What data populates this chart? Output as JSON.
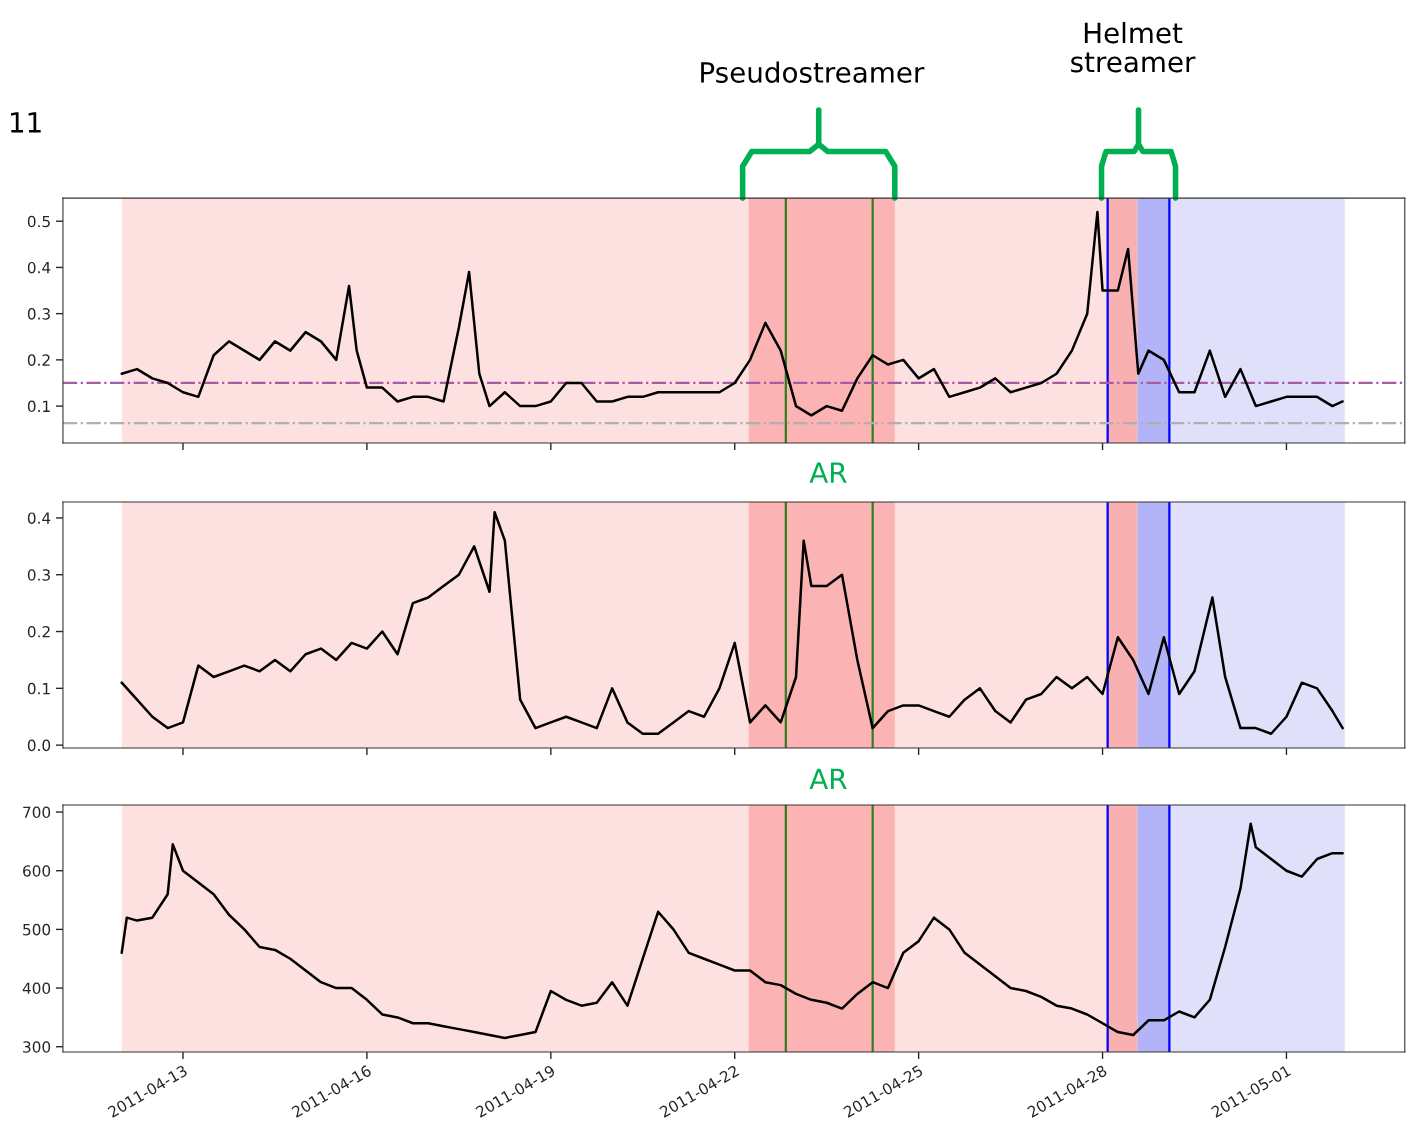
{
  "chart_data": [
    {
      "type": "line",
      "xlim": [
        "2011-04-11T01:00",
        "2011-05-02T22:20"
      ],
      "ylim": [
        0.02,
        0.55
      ],
      "yticks": [
        0.1,
        0.2,
        0.3,
        0.4,
        0.5
      ],
      "xticks": [
        "2011-04-13",
        "2011-04-16",
        "2011-04-19",
        "2011-04-22",
        "2011-04-25",
        "2011-04-28",
        "2011-05-01"
      ],
      "tick_labels": "y",
      "grid": false,
      "legend": false,
      "line_style": "solid",
      "marker": "none",
      "annotations": [
        "11",
        "Pseudostreamer",
        "Helmet\nstreamer"
      ],
      "series": [
        {
          "color": "#000000",
          "x": [
            "2011-04-12T00:00",
            "2011-04-12T06:00",
            "2011-04-12T12:00",
            "2011-04-12T18:00",
            "2011-04-13T00:00",
            "2011-04-13T06:00",
            "2011-04-13T12:00",
            "2011-04-13T18:00",
            "2011-04-14T00:00",
            "2011-04-14T06:00",
            "2011-04-14T12:00",
            "2011-04-14T18:00",
            "2011-04-15T00:00",
            "2011-04-15T06:00",
            "2011-04-15T12:00",
            "2011-04-15T17:00",
            "2011-04-15T20:00",
            "2011-04-16T00:00",
            "2011-04-16T06:00",
            "2011-04-16T12:00",
            "2011-04-16T18:00",
            "2011-04-17T00:00",
            "2011-04-17T06:00",
            "2011-04-17T12:00",
            "2011-04-17T16:00",
            "2011-04-17T20:00",
            "2011-04-18T00:00",
            "2011-04-18T06:00",
            "2011-04-18T12:00",
            "2011-04-18T18:00",
            "2011-04-19T00:00",
            "2011-04-19T06:00",
            "2011-04-19T12:00",
            "2011-04-19T18:00",
            "2011-04-20T00:00",
            "2011-04-20T06:00",
            "2011-04-20T12:00",
            "2011-04-20T18:00",
            "2011-04-21T00:00",
            "2011-04-21T06:00",
            "2011-04-21T12:00",
            "2011-04-21T18:00",
            "2011-04-22T00:00",
            "2011-04-22T06:00",
            "2011-04-22T12:00",
            "2011-04-22T18:00",
            "2011-04-23T00:00",
            "2011-04-23T06:00",
            "2011-04-23T12:00",
            "2011-04-23T18:00",
            "2011-04-24T00:00",
            "2011-04-24T06:00",
            "2011-04-24T12:00",
            "2011-04-24T18:00",
            "2011-04-25T00:00",
            "2011-04-25T06:00",
            "2011-04-25T12:00",
            "2011-04-25T18:00",
            "2011-04-26T00:00",
            "2011-04-26T06:00",
            "2011-04-26T12:00",
            "2011-04-26T18:00",
            "2011-04-27T00:00",
            "2011-04-27T06:00",
            "2011-04-27T12:00",
            "2011-04-27T18:00",
            "2011-04-27T22:00",
            "2011-04-28T00:00",
            "2011-04-28T06:00",
            "2011-04-28T10:00",
            "2011-04-28T14:00",
            "2011-04-28T18:00",
            "2011-04-29T00:00",
            "2011-04-29T06:00",
            "2011-04-29T12:00",
            "2011-04-29T18:00",
            "2011-04-30T00:00",
            "2011-04-30T06:00",
            "2011-04-30T12:00",
            "2011-04-30T18:00",
            "2011-05-01T00:00",
            "2011-05-01T06:00",
            "2011-05-01T12:00",
            "2011-05-01T18:00",
            "2011-05-01T22:00"
          ],
          "values": [
            0.17,
            0.18,
            0.16,
            0.15,
            0.13,
            0.12,
            0.21,
            0.24,
            0.22,
            0.2,
            0.24,
            0.22,
            0.26,
            0.24,
            0.2,
            0.36,
            0.22,
            0.14,
            0.14,
            0.11,
            0.12,
            0.12,
            0.11,
            0.27,
            0.39,
            0.17,
            0.1,
            0.13,
            0.1,
            0.1,
            0.11,
            0.15,
            0.15,
            0.11,
            0.11,
            0.12,
            0.12,
            0.13,
            0.13,
            0.13,
            0.13,
            0.13,
            0.15,
            0.2,
            0.28,
            0.22,
            0.1,
            0.08,
            0.1,
            0.09,
            0.16,
            0.21,
            0.19,
            0.2,
            0.16,
            0.18,
            0.12,
            0.13,
            0.14,
            0.16,
            0.13,
            0.14,
            0.15,
            0.17,
            0.22,
            0.3,
            0.52,
            0.35,
            0.35,
            0.44,
            0.17,
            0.22,
            0.2,
            0.13,
            0.13,
            0.22,
            0.12,
            0.18,
            0.1,
            0.11,
            0.12,
            0.12,
            0.12,
            0.1,
            0.11
          ]
        }
      ],
      "bands": [
        {
          "axis": "x",
          "from": "2011-04-12T00:00",
          "to": "2011-04-28T02:00",
          "color": "#fde0e0"
        },
        {
          "axis": "x",
          "from": "2011-04-22T05:30",
          "to": "2011-04-24T14:40",
          "color": "#fbb3b3"
        },
        {
          "axis": "x",
          "from": "2011-04-28T02:00",
          "to": "2011-04-28T13:40",
          "color": "#f9b0b0"
        },
        {
          "axis": "x",
          "from": "2011-04-28T13:40",
          "to": "2011-04-29T02:10",
          "color": "#b3b3f7"
        },
        {
          "axis": "x",
          "from": "2011-04-29T02:10",
          "to": "2011-05-01T22:50",
          "color": "#e0e0fa"
        }
      ],
      "ref_lines": [
        {
          "axis": "x",
          "value": "2011-04-22T20:00",
          "color": "#2e7d1e",
          "line_style": "solid"
        },
        {
          "axis": "x",
          "value": "2011-04-24T06:00",
          "color": "#2e7d1e",
          "line_style": "solid"
        },
        {
          "axis": "x",
          "value": "2011-04-28T02:00",
          "color": "#0000ff",
          "line_style": "solid"
        },
        {
          "axis": "x",
          "value": "2011-04-29T02:10",
          "color": "#0000ff",
          "line_style": "solid"
        },
        {
          "axis": "y",
          "value": 0.15,
          "color": "#a45ca4",
          "line_style": "dashdot"
        },
        {
          "axis": "y",
          "value": 0.063,
          "color": "#b0b0b0",
          "line_style": "dashdot"
        }
      ]
    },
    {
      "type": "line",
      "xlim": [
        "2011-04-11T01:00",
        "2011-05-02T22:20"
      ],
      "ylim": [
        -0.005,
        0.428
      ],
      "yticks": [
        {
          "value": 0,
          "label": "0.0"
        },
        0.1,
        0.2,
        0.3,
        0.4
      ],
      "xticks": [
        "2011-04-13",
        "2011-04-16",
        "2011-04-19",
        "2011-04-22",
        "2011-04-25",
        "2011-04-28",
        "2011-05-01"
      ],
      "tick_labels": "y",
      "grid": false,
      "legend": false,
      "line_style": "solid",
      "marker": "none",
      "annotations": [
        "AR"
      ],
      "series": [
        {
          "color": "#000000",
          "x": [
            "2011-04-12T00:00",
            "2011-04-12T06:00",
            "2011-04-12T12:00",
            "2011-04-12T18:00",
            "2011-04-13T00:00",
            "2011-04-13T06:00",
            "2011-04-13T12:00",
            "2011-04-13T18:00",
            "2011-04-14T00:00",
            "2011-04-14T06:00",
            "2011-04-14T12:00",
            "2011-04-14T18:00",
            "2011-04-15T00:00",
            "2011-04-15T06:00",
            "2011-04-15T12:00",
            "2011-04-15T18:00",
            "2011-04-16T00:00",
            "2011-04-16T06:00",
            "2011-04-16T12:00",
            "2011-04-16T18:00",
            "2011-04-17T00:00",
            "2011-04-17T06:00",
            "2011-04-17T12:00",
            "2011-04-17T18:00",
            "2011-04-18T00:00",
            "2011-04-18T02:00",
            "2011-04-18T06:00",
            "2011-04-18T12:00",
            "2011-04-18T18:00",
            "2011-04-19T00:00",
            "2011-04-19T06:00",
            "2011-04-19T12:00",
            "2011-04-19T18:00",
            "2011-04-20T00:00",
            "2011-04-20T06:00",
            "2011-04-20T12:00",
            "2011-04-20T18:00",
            "2011-04-21T00:00",
            "2011-04-21T06:00",
            "2011-04-21T12:00",
            "2011-04-21T18:00",
            "2011-04-22T00:00",
            "2011-04-22T06:00",
            "2011-04-22T12:00",
            "2011-04-22T18:00",
            "2011-04-23T00:00",
            "2011-04-23T03:00",
            "2011-04-23T06:00",
            "2011-04-23T12:00",
            "2011-04-23T18:00",
            "2011-04-24T00:00",
            "2011-04-24T06:00",
            "2011-04-24T12:00",
            "2011-04-24T18:00",
            "2011-04-25T00:00",
            "2011-04-25T06:00",
            "2011-04-25T12:00",
            "2011-04-25T18:00",
            "2011-04-26T00:00",
            "2011-04-26T06:00",
            "2011-04-26T12:00",
            "2011-04-26T18:00",
            "2011-04-27T00:00",
            "2011-04-27T06:00",
            "2011-04-27T12:00",
            "2011-04-27T18:00",
            "2011-04-28T00:00",
            "2011-04-28T06:00",
            "2011-04-28T12:00",
            "2011-04-28T18:00",
            "2011-04-29T00:00",
            "2011-04-29T06:00",
            "2011-04-29T12:00",
            "2011-04-29T19:00",
            "2011-04-30T00:00",
            "2011-04-30T06:00",
            "2011-04-30T12:00",
            "2011-04-30T18:00",
            "2011-05-01T00:00",
            "2011-05-01T06:00",
            "2011-05-01T12:00",
            "2011-05-01T18:00",
            "2011-05-01T22:00"
          ],
          "values": [
            0.11,
            0.08,
            0.05,
            0.03,
            0.04,
            0.14,
            0.12,
            0.13,
            0.14,
            0.13,
            0.15,
            0.13,
            0.16,
            0.17,
            0.15,
            0.18,
            0.17,
            0.2,
            0.16,
            0.25,
            0.26,
            0.28,
            0.3,
            0.35,
            0.27,
            0.41,
            0.36,
            0.08,
            0.03,
            0.04,
            0.05,
            0.04,
            0.03,
            0.1,
            0.04,
            0.02,
            0.02,
            0.04,
            0.06,
            0.05,
            0.1,
            0.18,
            0.04,
            0.07,
            0.04,
            0.12,
            0.36,
            0.28,
            0.28,
            0.3,
            0.15,
            0.03,
            0.06,
            0.07,
            0.07,
            0.06,
            0.05,
            0.08,
            0.1,
            0.06,
            0.04,
            0.08,
            0.09,
            0.12,
            0.1,
            0.12,
            0.09,
            0.19,
            0.15,
            0.09,
            0.19,
            0.09,
            0.13,
            0.26,
            0.12,
            0.03,
            0.03,
            0.02,
            0.05,
            0.11,
            0.1,
            0.06,
            0.03
          ]
        }
      ],
      "bands": [
        {
          "axis": "x",
          "from": "2011-04-12T00:00",
          "to": "2011-04-28T02:00",
          "color": "#fde0e0"
        },
        {
          "axis": "x",
          "from": "2011-04-22T05:30",
          "to": "2011-04-24T14:40",
          "color": "#fbb3b3"
        },
        {
          "axis": "x",
          "from": "2011-04-28T02:00",
          "to": "2011-04-28T13:40",
          "color": "#f9b0b0"
        },
        {
          "axis": "x",
          "from": "2011-04-28T13:40",
          "to": "2011-04-29T02:10",
          "color": "#b3b3f7"
        },
        {
          "axis": "x",
          "from": "2011-04-29T02:10",
          "to": "2011-05-01T22:50",
          "color": "#e0e0fa"
        }
      ],
      "ref_lines": [
        {
          "axis": "x",
          "value": "2011-04-22T20:00",
          "color": "#2e7d1e",
          "line_style": "solid"
        },
        {
          "axis": "x",
          "value": "2011-04-24T06:00",
          "color": "#2e7d1e",
          "line_style": "solid"
        },
        {
          "axis": "x",
          "value": "2011-04-28T02:00",
          "color": "#0000ff",
          "line_style": "solid"
        },
        {
          "axis": "x",
          "value": "2011-04-29T02:10",
          "color": "#0000ff",
          "line_style": "solid"
        }
      ]
    },
    {
      "type": "line",
      "xlim": [
        "2011-04-11T01:00",
        "2011-05-02T22:20"
      ],
      "ylim": [
        291,
        712
      ],
      "yticks": [
        300,
        400,
        500,
        600,
        700
      ],
      "xticks": [
        "2011-04-13",
        "2011-04-16",
        "2011-04-19",
        "2011-04-22",
        "2011-04-25",
        "2011-04-28",
        "2011-05-01"
      ],
      "grid": false,
      "legend": false,
      "line_style": "solid",
      "marker": "none",
      "annotations": [
        "AR"
      ],
      "series": [
        {
          "color": "#000000",
          "x": [
            "2011-04-12T00:00",
            "2011-04-12T02:00",
            "2011-04-12T06:00",
            "2011-04-12T12:00",
            "2011-04-12T18:00",
            "2011-04-12T20:00",
            "2011-04-13T00:00",
            "2011-04-13T06:00",
            "2011-04-13T12:00",
            "2011-04-13T18:00",
            "2011-04-14T00:00",
            "2011-04-14T06:00",
            "2011-04-14T12:00",
            "2011-04-14T18:00",
            "2011-04-15T00:00",
            "2011-04-15T06:00",
            "2011-04-15T12:00",
            "2011-04-15T18:00",
            "2011-04-16T00:00",
            "2011-04-16T06:00",
            "2011-04-16T12:00",
            "2011-04-16T18:00",
            "2011-04-17T00:00",
            "2011-04-17T06:00",
            "2011-04-17T12:00",
            "2011-04-17T18:00",
            "2011-04-18T00:00",
            "2011-04-18T06:00",
            "2011-04-18T12:00",
            "2011-04-18T18:00",
            "2011-04-19T00:00",
            "2011-04-19T06:00",
            "2011-04-19T12:00",
            "2011-04-19T18:00",
            "2011-04-20T00:00",
            "2011-04-20T06:00",
            "2011-04-20T12:00",
            "2011-04-20T18:00",
            "2011-04-21T00:00",
            "2011-04-21T06:00",
            "2011-04-21T12:00",
            "2011-04-21T18:00",
            "2011-04-22T00:00",
            "2011-04-22T06:00",
            "2011-04-22T12:00",
            "2011-04-22T18:00",
            "2011-04-23T00:00",
            "2011-04-23T06:00",
            "2011-04-23T12:00",
            "2011-04-23T18:00",
            "2011-04-24T00:00",
            "2011-04-24T06:00",
            "2011-04-24T12:00",
            "2011-04-24T18:00",
            "2011-04-25T00:00",
            "2011-04-25T06:00",
            "2011-04-25T12:00",
            "2011-04-25T18:00",
            "2011-04-26T00:00",
            "2011-04-26T06:00",
            "2011-04-26T12:00",
            "2011-04-26T18:00",
            "2011-04-27T00:00",
            "2011-04-27T06:00",
            "2011-04-27T12:00",
            "2011-04-27T18:00",
            "2011-04-28T00:00",
            "2011-04-28T06:00",
            "2011-04-28T12:00",
            "2011-04-28T18:00",
            "2011-04-29T00:00",
            "2011-04-29T06:00",
            "2011-04-29T12:00",
            "2011-04-29T18:00",
            "2011-04-30T00:00",
            "2011-04-30T06:00",
            "2011-04-30T10:00",
            "2011-04-30T12:00",
            "2011-04-30T18:00",
            "2011-05-01T00:00",
            "2011-05-01T06:00",
            "2011-05-01T12:00",
            "2011-05-01T18:00",
            "2011-05-01T22:00"
          ],
          "values": [
            460,
            520,
            515,
            520,
            560,
            645,
            600,
            580,
            560,
            525,
            500,
            470,
            465,
            450,
            430,
            410,
            400,
            400,
            380,
            355,
            350,
            340,
            340,
            335,
            330,
            325,
            320,
            315,
            320,
            325,
            395,
            380,
            370,
            375,
            410,
            370,
            450,
            530,
            500,
            460,
            450,
            440,
            430,
            430,
            410,
            405,
            390,
            380,
            375,
            365,
            390,
            410,
            400,
            460,
            480,
            520,
            500,
            460,
            440,
            420,
            400,
            395,
            385,
            370,
            365,
            355,
            340,
            325,
            320,
            345,
            345,
            360,
            350,
            380,
            470,
            570,
            680,
            640,
            620,
            600,
            590,
            620,
            630,
            630
          ]
        }
      ],
      "bands": [
        {
          "axis": "x",
          "from": "2011-04-12T00:00",
          "to": "2011-04-28T02:00",
          "color": "#fde0e0"
        },
        {
          "axis": "x",
          "from": "2011-04-22T05:30",
          "to": "2011-04-24T14:40",
          "color": "#fbb3b3"
        },
        {
          "axis": "x",
          "from": "2011-04-28T02:00",
          "to": "2011-04-28T13:40",
          "color": "#f9b0b0"
        },
        {
          "axis": "x",
          "from": "2011-04-28T13:40",
          "to": "2011-04-29T02:10",
          "color": "#b3b3f7"
        },
        {
          "axis": "x",
          "from": "2011-04-29T02:10",
          "to": "2011-05-01T22:50",
          "color": "#e0e0fa"
        }
      ],
      "ref_lines": [
        {
          "axis": "x",
          "value": "2011-04-22T20:00",
          "color": "#2e7d1e",
          "line_style": "solid"
        },
        {
          "axis": "x",
          "value": "2011-04-24T06:00",
          "color": "#2e7d1e",
          "line_style": "solid"
        },
        {
          "axis": "x",
          "value": "2011-04-28T02:00",
          "color": "#0000ff",
          "line_style": "solid"
        },
        {
          "axis": "x",
          "value": "2011-04-29T02:10",
          "color": "#0000ff",
          "line_style": "solid"
        }
      ]
    }
  ]
}
